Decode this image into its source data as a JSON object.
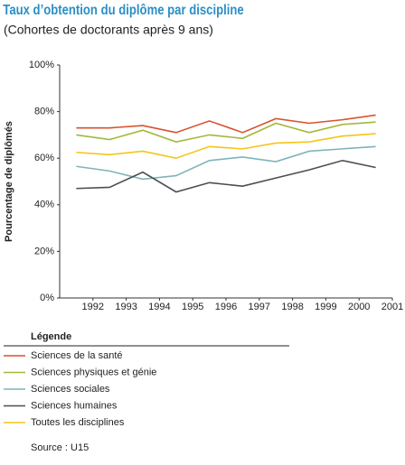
{
  "chart_data": {
    "type": "line",
    "title": "Taux d’obtention du diplôme par discipline",
    "subtitle": "(Cohortes de doctorants après 9 ans)",
    "y_label": "Pourcentage de diplômés",
    "legend_title": "Légende",
    "source": "Source : U15",
    "x": [
      1991.5,
      1992.5,
      1993.5,
      1994.5,
      1995.5,
      1996.5,
      1997.5,
      1998.5,
      1999.5,
      2000.5
    ],
    "xlim": [
      1991,
      2001
    ],
    "xticks": [
      1992,
      1993,
      1994,
      1995,
      1996,
      1997,
      1998,
      1999,
      2000,
      2001
    ],
    "ylim": [
      0,
      100
    ],
    "yticks": [
      {
        "value": 0,
        "label": "0%"
      },
      {
        "value": 20,
        "label": "20%"
      },
      {
        "value": 40,
        "label": "40%"
      },
      {
        "value": 60,
        "label": "60%"
      },
      {
        "value": 80,
        "label": "80%"
      },
      {
        "value": 100,
        "label": "100%"
      }
    ],
    "grid": false,
    "series": [
      {
        "name": "Sciences de la santé",
        "color": "#d9512c",
        "values": [
          73,
          73,
          74,
          71,
          76,
          71,
          77,
          75,
          76.5,
          78.5
        ]
      },
      {
        "name": "Sciences physiques et génie",
        "color": "#a3b83a",
        "values": [
          70,
          68,
          72,
          67,
          70,
          68.5,
          75,
          71,
          74.5,
          75.5
        ]
      },
      {
        "name": "Sciences sociales",
        "color": "#7fb4b8",
        "values": [
          56.5,
          54.5,
          51,
          52.5,
          59,
          60.5,
          58.5,
          63,
          64,
          65
        ]
      },
      {
        "name": "Sciences humaines",
        "color": "#4a4d52",
        "values": [
          47,
          47.5,
          54,
          45.5,
          49.5,
          48,
          51.5,
          55,
          59,
          56
        ]
      },
      {
        "name": "Toutes les disciplines",
        "color": "#f5c518",
        "values": [
          62.5,
          61.5,
          63,
          60,
          65,
          64,
          66.5,
          67,
          69.5,
          70.5
        ]
      }
    ]
  }
}
